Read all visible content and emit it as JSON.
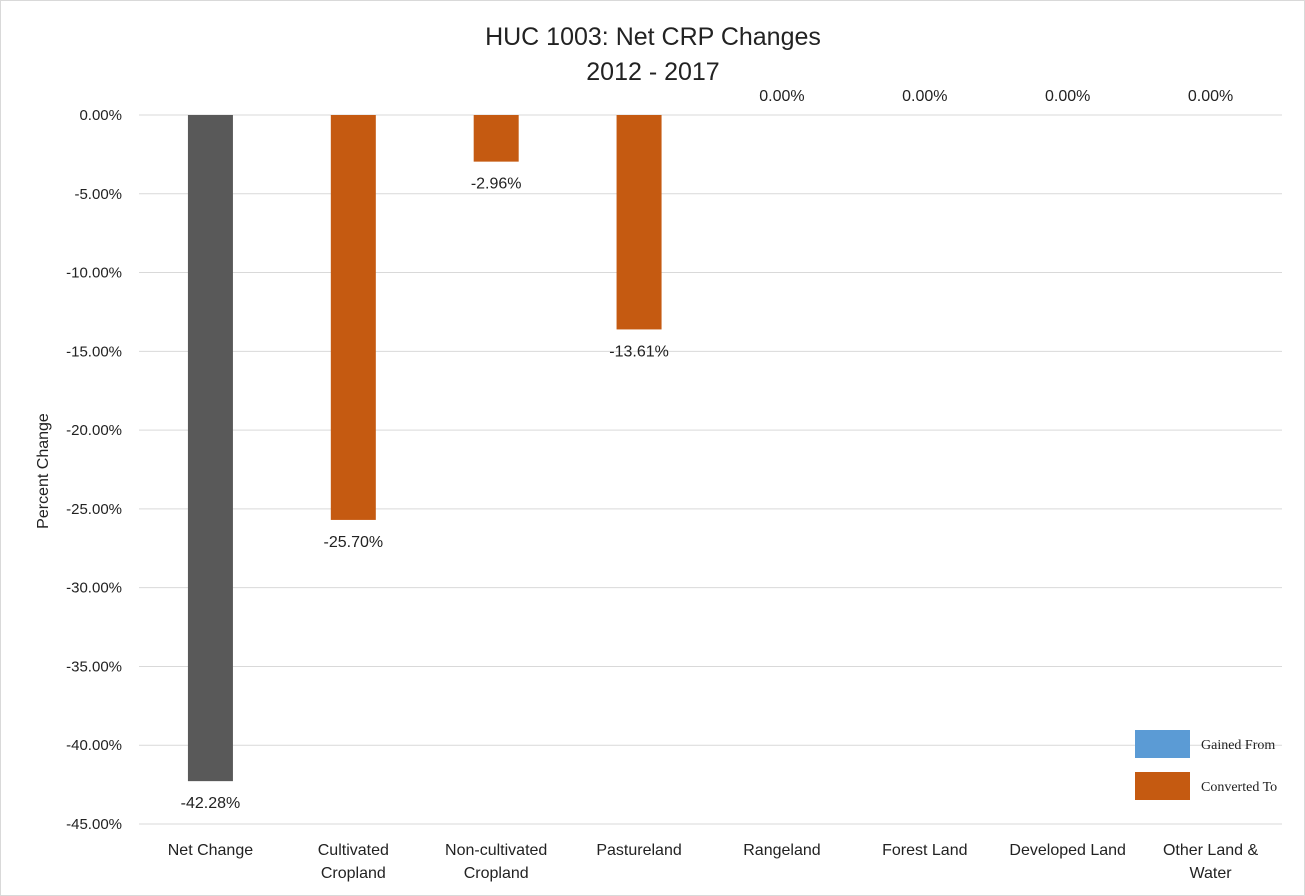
{
  "chart_data": {
    "type": "bar",
    "title": [
      "HUC 1003: Net CRP Changes",
      "2012 - 2017"
    ],
    "ylabel": "Percent Change",
    "xlabel": "",
    "ylim": [
      -45,
      0
    ],
    "yticks": [
      0,
      -5,
      -10,
      -15,
      -20,
      -25,
      -30,
      -35,
      -40,
      -45
    ],
    "ytick_labels": [
      "0.00%",
      "-5.00%",
      "-10.00%",
      "-15.00%",
      "-20.00%",
      "-25.00%",
      "-30.00%",
      "-35.00%",
      "-40.00%",
      "-45.00%"
    ],
    "grid": true,
    "categories": [
      [
        "Net Change"
      ],
      [
        "Cultivated",
        "Cropland"
      ],
      [
        "Non-cultivated",
        "Cropland"
      ],
      [
        "Pastureland"
      ],
      [
        "Rangeland"
      ],
      [
        "Forest Land"
      ],
      [
        "Developed Land"
      ],
      [
        "Other Land &",
        "Water"
      ]
    ],
    "values": [
      -42.28,
      -25.7,
      -2.96,
      -13.61,
      0.0,
      0.0,
      0.0,
      0.0
    ],
    "data_labels": [
      "-42.28%",
      "-25.70%",
      "-2.96%",
      "-13.61%",
      "0.00%",
      "0.00%",
      "0.00%",
      "0.00%"
    ],
    "bar_colors": [
      "#595959",
      "#c55a11",
      "#c55a11",
      "#c55a11",
      "#c55a11",
      "#c55a11",
      "#c55a11",
      "#c55a11"
    ],
    "legend": {
      "placement": "bottom-right",
      "entries": [
        {
          "name": "Gained From",
          "color": "#5b9bd5"
        },
        {
          "name": "Converted To",
          "color": "#c55a11"
        }
      ]
    }
  }
}
